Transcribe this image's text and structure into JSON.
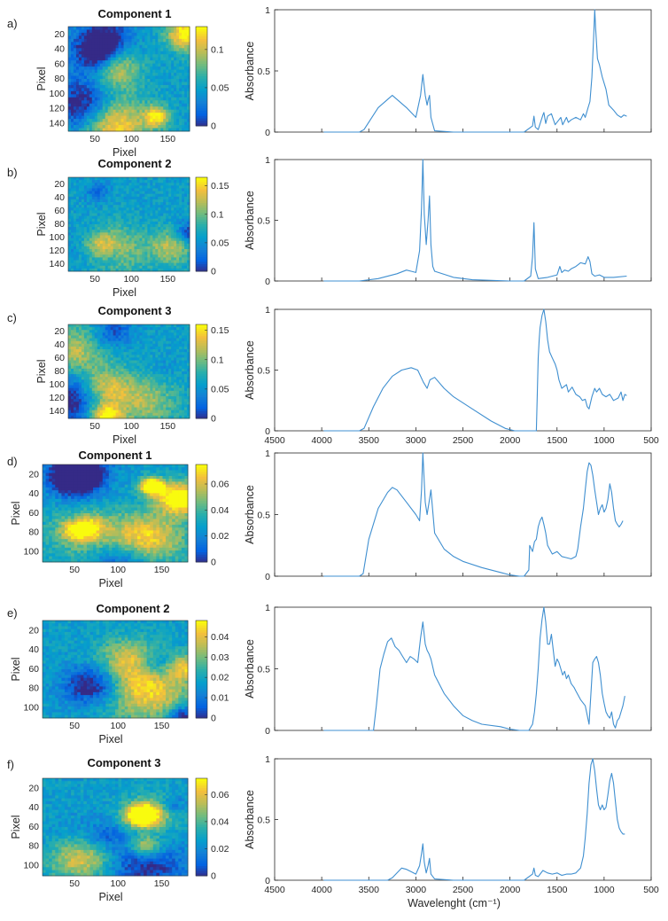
{
  "chart_data": [
    {
      "type": "heatmap",
      "panel_label": "a)",
      "title": "Component 1",
      "xlabel": "Pixel",
      "ylabel": "Pixel",
      "xticks": [
        "50",
        "100",
        "150"
      ],
      "yticks": [
        "20",
        "40",
        "60",
        "80",
        "100",
        "120",
        "140"
      ],
      "colorbar_ticks": [
        "0.1",
        "0.05",
        "0"
      ],
      "colorbar_range": [
        0,
        0.13
      ]
    },
    {
      "type": "line",
      "panel_label": "a)",
      "ylabel": "Absorbance",
      "yticks": [
        "1",
        "0.5",
        "0"
      ],
      "xlim": [
        4500,
        500
      ],
      "ylim": [
        0,
        1
      ],
      "x": [
        3980,
        3600,
        3550,
        3400,
        3250,
        3100,
        3000,
        2950,
        2925,
        2900,
        2880,
        2870,
        2855,
        2840,
        2800,
        2600,
        1850,
        1760,
        1745,
        1730,
        1700,
        1650,
        1640,
        1620,
        1600,
        1560,
        1520,
        1480,
        1460,
        1440,
        1400,
        1380,
        1350,
        1300,
        1250,
        1220,
        1200,
        1170,
        1150,
        1130,
        1110,
        1100,
        1090,
        1070,
        1050,
        1020,
        980,
        950,
        900,
        860,
        820,
        790,
        760
      ],
      "y": [
        0,
        0,
        0.02,
        0.2,
        0.3,
        0.2,
        0.12,
        0.3,
        0.47,
        0.3,
        0.22,
        0.26,
        0.3,
        0.12,
        0.01,
        0,
        0,
        0.05,
        0.13,
        0.04,
        0.02,
        0.14,
        0.16,
        0.07,
        0.13,
        0.15,
        0.06,
        0.1,
        0.12,
        0.06,
        0.12,
        0.08,
        0.1,
        0.12,
        0.1,
        0.15,
        0.12,
        0.2,
        0.25,
        0.45,
        0.8,
        1.0,
        0.85,
        0.6,
        0.55,
        0.45,
        0.35,
        0.22,
        0.18,
        0.14,
        0.12,
        0.14,
        0.13
      ]
    },
    {
      "type": "heatmap",
      "panel_label": "b)",
      "title": "Component 2",
      "xlabel": "Pixel",
      "ylabel": "Pixel",
      "xticks": [
        "50",
        "100",
        "150"
      ],
      "yticks": [
        "20",
        "40",
        "60",
        "80",
        "100",
        "120",
        "140"
      ],
      "colorbar_ticks": [
        "0.15",
        "0.1",
        "0.05",
        "0"
      ],
      "colorbar_range": [
        0,
        0.165
      ]
    },
    {
      "type": "line",
      "panel_label": "b)",
      "ylabel": "Absorbance",
      "yticks": [
        "1",
        "0.5",
        "0"
      ],
      "xlim": [
        4500,
        500
      ],
      "ylim": [
        0,
        1
      ],
      "x": [
        3980,
        3600,
        3400,
        3200,
        3100,
        3050,
        3000,
        2960,
        2940,
        2925,
        2910,
        2890,
        2870,
        2855,
        2840,
        2820,
        2800,
        2600,
        2400,
        2000,
        1850,
        1780,
        1760,
        1745,
        1730,
        1700,
        1600,
        1500,
        1470,
        1450,
        1420,
        1380,
        1350,
        1300,
        1250,
        1200,
        1170,
        1150,
        1130,
        1100,
        1050,
        1000,
        900,
        760
      ],
      "y": [
        0,
        0,
        0.02,
        0.06,
        0.09,
        0.08,
        0.07,
        0.25,
        0.6,
        1.0,
        0.55,
        0.3,
        0.5,
        0.7,
        0.3,
        0.12,
        0.08,
        0.03,
        0.01,
        0,
        0,
        0.04,
        0.2,
        0.48,
        0.1,
        0.02,
        0.03,
        0.05,
        0.12,
        0.07,
        0.09,
        0.08,
        0.1,
        0.12,
        0.15,
        0.14,
        0.2,
        0.16,
        0.06,
        0.04,
        0.05,
        0.03,
        0.03,
        0.04
      ]
    },
    {
      "type": "heatmap",
      "panel_label": "c)",
      "title": "Component 3",
      "xlabel": "Pixel",
      "ylabel": "Pixel",
      "xticks": [
        "50",
        "100",
        "150"
      ],
      "yticks": [
        "20",
        "40",
        "60",
        "80",
        "100",
        "120",
        "140"
      ],
      "colorbar_ticks": [
        "0.15",
        "0.1",
        "0.05",
        "0"
      ],
      "colorbar_range": [
        0,
        0.16
      ]
    },
    {
      "type": "line",
      "panel_label": "c)",
      "ylabel": "Absorbance",
      "xticks": [
        "4500",
        "4000",
        "3500",
        "3000",
        "2500",
        "2000",
        "1500",
        "1000",
        "500"
      ],
      "yticks": [
        "1",
        "0.5",
        "0"
      ],
      "xlim": [
        4500,
        500
      ],
      "ylim": [
        0,
        1
      ],
      "x": [
        3980,
        3600,
        3550,
        3450,
        3350,
        3250,
        3150,
        3050,
        2980,
        2920,
        2880,
        2850,
        2800,
        2700,
        2600,
        2400,
        2200,
        2050,
        1950,
        1800,
        1720,
        1700,
        1690,
        1680,
        1660,
        1640,
        1620,
        1600,
        1580,
        1550,
        1520,
        1500,
        1480,
        1450,
        1400,
        1380,
        1340,
        1300,
        1260,
        1230,
        1200,
        1180,
        1160,
        1130,
        1100,
        1080,
        1050,
        1020,
        980,
        940,
        900,
        850,
        820,
        800,
        780,
        760
      ],
      "y": [
        0,
        0,
        0.02,
        0.2,
        0.35,
        0.45,
        0.5,
        0.52,
        0.5,
        0.4,
        0.35,
        0.42,
        0.44,
        0.35,
        0.28,
        0.18,
        0.08,
        0.02,
        0,
        0,
        0,
        0.6,
        0.75,
        0.85,
        0.95,
        1.0,
        0.9,
        0.75,
        0.65,
        0.6,
        0.55,
        0.5,
        0.42,
        0.35,
        0.38,
        0.32,
        0.36,
        0.3,
        0.28,
        0.25,
        0.26,
        0.2,
        0.18,
        0.28,
        0.35,
        0.32,
        0.35,
        0.3,
        0.28,
        0.3,
        0.25,
        0.27,
        0.32,
        0.25,
        0.3,
        0.29
      ]
    },
    {
      "type": "heatmap",
      "panel_label": "d)",
      "title": "Component 1",
      "xlabel": "Pixel",
      "ylabel": "Pixel",
      "xticks": [
        "50",
        "100",
        "150"
      ],
      "yticks": [
        "20",
        "40",
        "60",
        "80",
        "100"
      ],
      "colorbar_ticks": [
        "0.06",
        "0.04",
        "0.02",
        "0"
      ],
      "colorbar_range": [
        0,
        0.075
      ]
    },
    {
      "type": "line",
      "panel_label": "d)",
      "ylabel": "Absorbance",
      "yticks": [
        "1",
        "0.5",
        "0"
      ],
      "xlim": [
        4500,
        500
      ],
      "ylim": [
        0,
        1
      ],
      "x": [
        3980,
        3600,
        3560,
        3500,
        3400,
        3300,
        3250,
        3200,
        3100,
        3000,
        2960,
        2940,
        2925,
        2900,
        2880,
        2860,
        2840,
        2800,
        2700,
        2600,
        2500,
        2300,
        2100,
        2000,
        1900,
        1850,
        1800,
        1790,
        1760,
        1740,
        1720,
        1700,
        1680,
        1660,
        1640,
        1620,
        1600,
        1580,
        1550,
        1500,
        1450,
        1400,
        1350,
        1300,
        1280,
        1250,
        1220,
        1200,
        1180,
        1160,
        1140,
        1120,
        1100,
        1080,
        1060,
        1040,
        1020,
        1000,
        980,
        960,
        940,
        920,
        900,
        880,
        860,
        840,
        820,
        800
      ],
      "y": [
        0,
        0,
        0.02,
        0.3,
        0.55,
        0.68,
        0.72,
        0.7,
        0.6,
        0.5,
        0.45,
        0.7,
        1.0,
        0.6,
        0.5,
        0.6,
        0.7,
        0.35,
        0.22,
        0.16,
        0.12,
        0.07,
        0.03,
        0.01,
        0,
        0,
        0.05,
        0.25,
        0.2,
        0.28,
        0.3,
        0.4,
        0.45,
        0.48,
        0.42,
        0.35,
        0.25,
        0.22,
        0.18,
        0.2,
        0.16,
        0.15,
        0.14,
        0.16,
        0.22,
        0.4,
        0.55,
        0.7,
        0.85,
        0.92,
        0.9,
        0.82,
        0.7,
        0.6,
        0.5,
        0.55,
        0.58,
        0.52,
        0.55,
        0.62,
        0.75,
        0.68,
        0.55,
        0.45,
        0.42,
        0.4,
        0.42,
        0.45
      ]
    },
    {
      "type": "heatmap",
      "panel_label": "e)",
      "title": "Component 2",
      "xlabel": "Pixel",
      "ylabel": "Pixel",
      "xticks": [
        "50",
        "100",
        "150"
      ],
      "yticks": [
        "20",
        "40",
        "60",
        "80",
        "100"
      ],
      "colorbar_ticks": [
        "0.04",
        "0.03",
        "0.02",
        "0.01",
        "0"
      ],
      "colorbar_range": [
        0,
        0.048
      ]
    },
    {
      "type": "line",
      "panel_label": "e)",
      "ylabel": "Absorbance",
      "yticks": [
        "1",
        "0.5",
        "0"
      ],
      "xlim": [
        4500,
        500
      ],
      "ylim": [
        0,
        1
      ],
      "x": [
        3980,
        3450,
        3420,
        3380,
        3340,
        3300,
        3260,
        3220,
        3180,
        3140,
        3100,
        3060,
        3020,
        2980,
        2950,
        2925,
        2900,
        2880,
        2860,
        2840,
        2800,
        2700,
        2600,
        2500,
        2400,
        2300,
        2100,
        2000,
        1900,
        1800,
        1760,
        1740,
        1720,
        1700,
        1680,
        1660,
        1640,
        1620,
        1600,
        1580,
        1560,
        1540,
        1520,
        1500,
        1480,
        1460,
        1440,
        1420,
        1400,
        1380,
        1350,
        1320,
        1300,
        1250,
        1200,
        1160,
        1140,
        1120,
        1100,
        1080,
        1060,
        1040,
        1020,
        1000,
        980,
        960,
        940,
        920,
        900,
        880,
        860,
        840,
        820,
        800,
        780
      ],
      "y": [
        0,
        0,
        0.2,
        0.5,
        0.62,
        0.72,
        0.75,
        0.68,
        0.65,
        0.6,
        0.55,
        0.6,
        0.58,
        0.55,
        0.75,
        0.88,
        0.7,
        0.65,
        0.62,
        0.58,
        0.45,
        0.3,
        0.2,
        0.12,
        0.08,
        0.05,
        0.03,
        0.01,
        0,
        0,
        0.05,
        0.15,
        0.3,
        0.5,
        0.75,
        0.9,
        1.0,
        0.88,
        0.7,
        0.7,
        0.78,
        0.65,
        0.52,
        0.58,
        0.55,
        0.5,
        0.45,
        0.48,
        0.42,
        0.45,
        0.38,
        0.35,
        0.32,
        0.25,
        0.2,
        0.05,
        0.3,
        0.55,
        0.58,
        0.6,
        0.55,
        0.45,
        0.3,
        0.22,
        0.15,
        0.12,
        0.1,
        0.15,
        0.05,
        0.02,
        0.08,
        0.1,
        0.15,
        0.2,
        0.28
      ]
    },
    {
      "type": "heatmap",
      "panel_label": "f)",
      "title": "Component 3",
      "xlabel": "Pixel",
      "ylabel": "Pixel",
      "xticks": [
        "50",
        "100",
        "150"
      ],
      "yticks": [
        "20",
        "40",
        "60",
        "80",
        "100"
      ],
      "colorbar_ticks": [
        "0.06",
        "0.04",
        "0.02",
        "0"
      ],
      "colorbar_range": [
        0,
        0.072
      ]
    },
    {
      "type": "line",
      "panel_label": "f)",
      "ylabel": "Absorbance",
      "xlabel": "Wavelenght (cm⁻¹)",
      "xticks": [
        "4500",
        "4000",
        "3500",
        "3000",
        "2500",
        "2000",
        "1500",
        "1000",
        "500"
      ],
      "yticks": [
        "1",
        "0.5",
        "0"
      ],
      "xlim": [
        4500,
        500
      ],
      "ylim": [
        0,
        1
      ],
      "x": [
        3980,
        3300,
        3250,
        3200,
        3150,
        3100,
        3050,
        3000,
        2960,
        2940,
        2925,
        2910,
        2890,
        2870,
        2855,
        2840,
        2800,
        2600,
        1850,
        1760,
        1745,
        1730,
        1700,
        1650,
        1600,
        1550,
        1500,
        1450,
        1400,
        1350,
        1300,
        1250,
        1220,
        1200,
        1180,
        1160,
        1140,
        1120,
        1100,
        1080,
        1060,
        1040,
        1020,
        1000,
        980,
        960,
        940,
        920,
        900,
        880,
        860,
        840,
        820,
        800,
        780
      ],
      "y": [
        0,
        0,
        0.02,
        0.06,
        0.1,
        0.09,
        0.07,
        0.05,
        0.12,
        0.22,
        0.3,
        0.15,
        0.06,
        0.12,
        0.18,
        0.05,
        0.01,
        0,
        0,
        0.05,
        0.1,
        0.04,
        0.03,
        0.08,
        0.06,
        0.05,
        0.06,
        0.04,
        0.05,
        0.05,
        0.06,
        0.1,
        0.2,
        0.35,
        0.55,
        0.8,
        0.95,
        1.0,
        0.9,
        0.75,
        0.62,
        0.58,
        0.62,
        0.58,
        0.6,
        0.7,
        0.82,
        0.88,
        0.8,
        0.65,
        0.5,
        0.43,
        0.4,
        0.38,
        0.38
      ]
    }
  ]
}
